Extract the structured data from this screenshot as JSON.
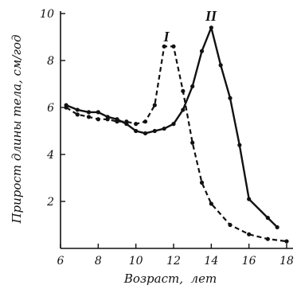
{
  "chart_data": {
    "type": "line",
    "xlabel": "Возраст,  лет",
    "ylabel": "Прирост длины тела, см/год",
    "xlim": [
      6,
      18
    ],
    "ylim": [
      0,
      10
    ],
    "x_ticks": [
      6,
      8,
      10,
      12,
      14,
      16,
      18
    ],
    "x_tick_labels": [
      "6",
      "8",
      "10",
      "12",
      "14",
      "16",
      "18"
    ],
    "y_ticks": [
      2,
      4,
      6,
      8,
      10
    ],
    "y_tick_labels": [
      "2",
      "4",
      "6",
      "8",
      "10"
    ],
    "grid": false,
    "legend": "none",
    "series": [
      {
        "name": "I",
        "style": "dashed",
        "points": [
          [
            6.3,
            6.0
          ],
          [
            6.9,
            5.7
          ],
          [
            7.5,
            5.6
          ],
          [
            8.0,
            5.5
          ],
          [
            8.5,
            5.5
          ],
          [
            9.0,
            5.4
          ],
          [
            9.5,
            5.4
          ],
          [
            10.0,
            5.3
          ],
          [
            10.5,
            5.4
          ],
          [
            11.0,
            6.1
          ],
          [
            11.5,
            8.6
          ],
          [
            12.0,
            8.6
          ],
          [
            12.5,
            6.7
          ],
          [
            13.0,
            4.5
          ],
          [
            13.5,
            2.8
          ],
          [
            14.0,
            1.9
          ],
          [
            15.0,
            1.0
          ],
          [
            16.0,
            0.6
          ],
          [
            17.0,
            0.4
          ],
          [
            18.0,
            0.3
          ]
        ]
      },
      {
        "name": "II",
        "style": "solid",
        "points": [
          [
            6.3,
            6.1
          ],
          [
            6.9,
            5.9
          ],
          [
            7.5,
            5.8
          ],
          [
            8.0,
            5.8
          ],
          [
            8.5,
            5.6
          ],
          [
            9.0,
            5.5
          ],
          [
            9.5,
            5.3
          ],
          [
            10.0,
            5.0
          ],
          [
            10.5,
            4.9
          ],
          [
            11.0,
            5.0
          ],
          [
            11.5,
            5.1
          ],
          [
            12.0,
            5.3
          ],
          [
            12.5,
            5.9
          ],
          [
            13.0,
            6.9
          ],
          [
            13.5,
            8.4
          ],
          [
            14.0,
            9.4
          ],
          [
            14.5,
            7.8
          ],
          [
            15.0,
            6.4
          ],
          [
            15.5,
            4.4
          ],
          [
            16.0,
            2.1
          ],
          [
            17.0,
            1.3
          ],
          [
            17.5,
            0.9
          ]
        ]
      }
    ]
  }
}
